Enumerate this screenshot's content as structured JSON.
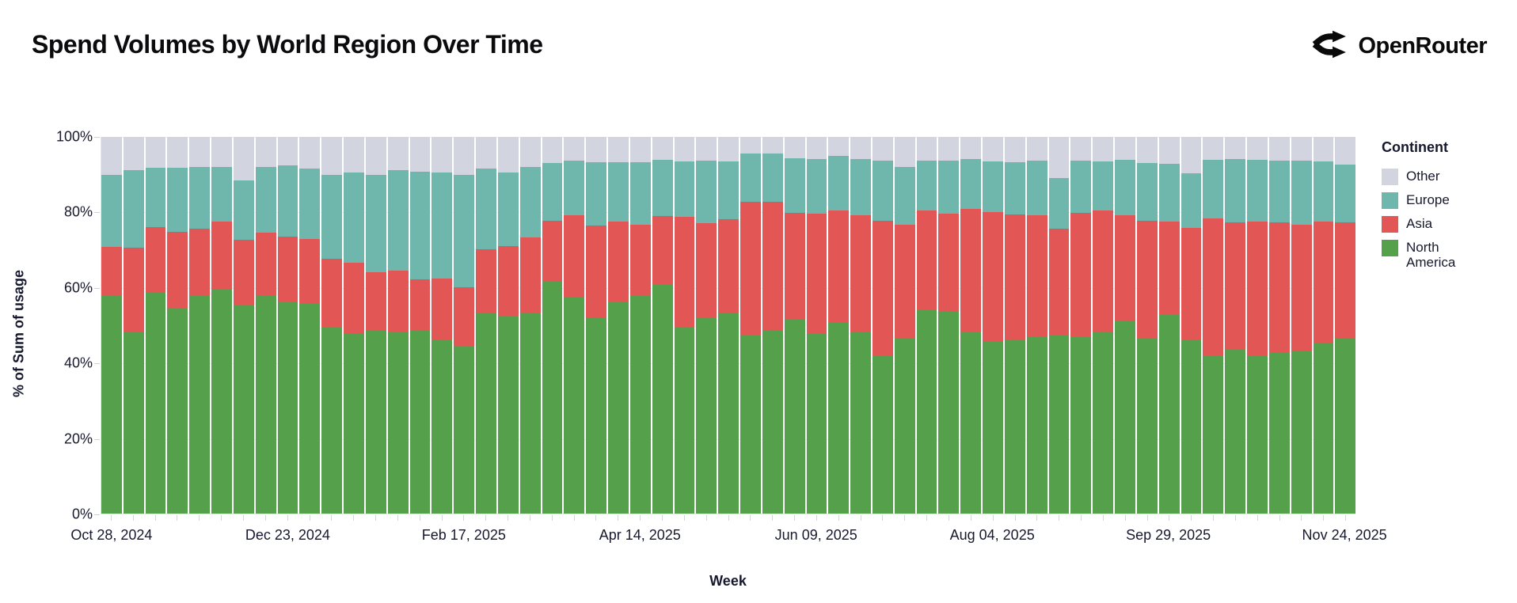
{
  "header": {
    "title": "Spend Volumes by World Region Over Time",
    "brand": {
      "name": "OpenRouter"
    }
  },
  "chart_data": {
    "type": "bar",
    "stacked": true,
    "normalized_percent": true,
    "title": "Spend Volumes by World Region Over Time",
    "xlabel": "Week",
    "ylabel": "% of Sum of usage",
    "ylim": [
      0,
      100
    ],
    "grid": true,
    "y_ticks": [
      {
        "value": 0,
        "label": "0%"
      },
      {
        "value": 20,
        "label": "20%"
      },
      {
        "value": 40,
        "label": "40%"
      },
      {
        "value": 60,
        "label": "60%"
      },
      {
        "value": 80,
        "label": "80%"
      },
      {
        "value": 100,
        "label": "100%"
      }
    ],
    "x_ticks": [
      {
        "index": 0,
        "label": "Oct 28, 2024"
      },
      {
        "index": 8,
        "label": "Dec 23, 2024"
      },
      {
        "index": 16,
        "label": "Feb 17, 2025"
      },
      {
        "index": 24,
        "label": "Apr 14, 2025"
      },
      {
        "index": 32,
        "label": "Jun 09, 2025"
      },
      {
        "index": 40,
        "label": "Aug 04, 2025"
      },
      {
        "index": 48,
        "label": "Sep 29, 2025"
      },
      {
        "index": 56,
        "label": "Nov 24, 2025"
      }
    ],
    "legend": {
      "title": "Continent",
      "position": "right",
      "entries": [
        {
          "label": "Other",
          "color": "#d2d5df"
        },
        {
          "label": "Europe",
          "color": "#6fb7ad"
        },
        {
          "label": "Asia",
          "color": "#e25756"
        },
        {
          "label": "North America",
          "color": "#54a04b"
        }
      ]
    },
    "stack_order_bottom_to_top": [
      "North America",
      "Asia",
      "Europe",
      "Other"
    ],
    "categories": [
      "Oct 28, 2024",
      "Nov 04, 2024",
      "Nov 11, 2024",
      "Nov 18, 2024",
      "Nov 25, 2024",
      "Dec 02, 2024",
      "Dec 09, 2024",
      "Dec 16, 2024",
      "Dec 23, 2024",
      "Dec 30, 2024",
      "Jan 06, 2025",
      "Jan 13, 2025",
      "Jan 20, 2025",
      "Jan 27, 2025",
      "Feb 03, 2025",
      "Feb 10, 2025",
      "Feb 17, 2025",
      "Feb 24, 2025",
      "Mar 03, 2025",
      "Mar 10, 2025",
      "Mar 17, 2025",
      "Mar 24, 2025",
      "Mar 31, 2025",
      "Apr 07, 2025",
      "Apr 14, 2025",
      "Apr 21, 2025",
      "Apr 28, 2025",
      "May 05, 2025",
      "May 12, 2025",
      "May 19, 2025",
      "May 26, 2025",
      "Jun 02, 2025",
      "Jun 09, 2025",
      "Jun 16, 2025",
      "Jun 23, 2025",
      "Jun 30, 2025",
      "Jul 07, 2025",
      "Jul 14, 2025",
      "Jul 21, 2025",
      "Jul 28, 2025",
      "Aug 04, 2025",
      "Aug 11, 2025",
      "Aug 18, 2025",
      "Aug 25, 2025",
      "Sep 01, 2025",
      "Sep 08, 2025",
      "Sep 15, 2025",
      "Sep 22, 2025",
      "Sep 29, 2025",
      "Oct 06, 2025",
      "Oct 13, 2025",
      "Oct 20, 2025",
      "Oct 27, 2025",
      "Nov 03, 2025",
      "Nov 10, 2025",
      "Nov 17, 2025",
      "Nov 24, 2025"
    ],
    "series": [
      {
        "name": "North America",
        "color": "#54a04b",
        "values": [
          57.7,
          48.3,
          58.6,
          54.7,
          57.7,
          59.7,
          55.5,
          57.7,
          56.0,
          55.8,
          49.6,
          47.9,
          48.6,
          48.1,
          48.6,
          46.3,
          44.5,
          53.2,
          52.4,
          53.2,
          61.6,
          57.5,
          52.0,
          56.1,
          57.7,
          60.7,
          49.5,
          51.8,
          53.4,
          47.4,
          48.6,
          51.6,
          47.7,
          50.7,
          48.4,
          41.7,
          46.4,
          54.1,
          53.6,
          48.4,
          45.6,
          46.3,
          46.8,
          47.5,
          47.0,
          48.4,
          51.1,
          46.5,
          52.9,
          46.1,
          41.7,
          43.4,
          41.8,
          42.9,
          43.1,
          45.4,
          46.5
        ]
      },
      {
        "name": "Asia",
        "color": "#e25756",
        "values": [
          13.1,
          22.3,
          17.5,
          20.1,
          18.0,
          17.8,
          17.2,
          16.8,
          17.6,
          17.1,
          18.0,
          18.8,
          15.4,
          16.4,
          13.5,
          16.0,
          15.5,
          17.0,
          18.7,
          20.1,
          16.1,
          21.6,
          24.5,
          21.4,
          18.9,
          18.2,
          29.3,
          25.4,
          24.7,
          35.4,
          34.2,
          28.2,
          32.0,
          29.8,
          30.8,
          36.1,
          30.2,
          26.4,
          26.0,
          32.5,
          34.4,
          33.2,
          32.3,
          28.2,
          32.8,
          32.1,
          28.1,
          31.2,
          24.6,
          29.8,
          36.7,
          33.9,
          35.7,
          34.4,
          33.5,
          32.1,
          30.8
        ]
      },
      {
        "name": "Europe",
        "color": "#6fb7ad",
        "values": [
          19.1,
          20.6,
          15.7,
          17.0,
          16.3,
          14.6,
          15.7,
          17.5,
          18.8,
          18.7,
          22.4,
          23.8,
          26.0,
          26.7,
          28.6,
          28.2,
          30.0,
          21.4,
          19.4,
          18.7,
          15.3,
          14.7,
          16.7,
          15.7,
          16.6,
          15.1,
          14.7,
          16.6,
          15.3,
          12.7,
          12.7,
          14.6,
          14.4,
          14.4,
          15.0,
          15.9,
          15.5,
          13.2,
          14.0,
          13.2,
          13.5,
          13.7,
          14.6,
          13.4,
          13.9,
          13.0,
          14.7,
          15.3,
          15.4,
          14.4,
          15.5,
          16.8,
          16.4,
          16.4,
          17.1,
          16.0,
          15.4
        ]
      },
      {
        "name": "Other",
        "color": "#d2d5df",
        "values": [
          10.1,
          8.8,
          8.2,
          8.2,
          8.0,
          7.9,
          11.6,
          8.0,
          7.6,
          8.4,
          10.0,
          9.5,
          10.0,
          8.8,
          9.3,
          9.5,
          10.0,
          8.4,
          9.5,
          8.0,
          7.0,
          6.2,
          6.8,
          6.8,
          6.8,
          6.0,
          6.5,
          6.2,
          6.6,
          4.5,
          4.5,
          5.6,
          5.9,
          5.1,
          5.8,
          6.3,
          7.9,
          6.3,
          6.4,
          5.9,
          6.5,
          6.8,
          6.3,
          10.9,
          6.3,
          6.5,
          6.1,
          7.0,
          7.1,
          9.7,
          6.1,
          5.9,
          6.1,
          6.3,
          6.3,
          6.5,
          7.3
        ]
      }
    ]
  }
}
